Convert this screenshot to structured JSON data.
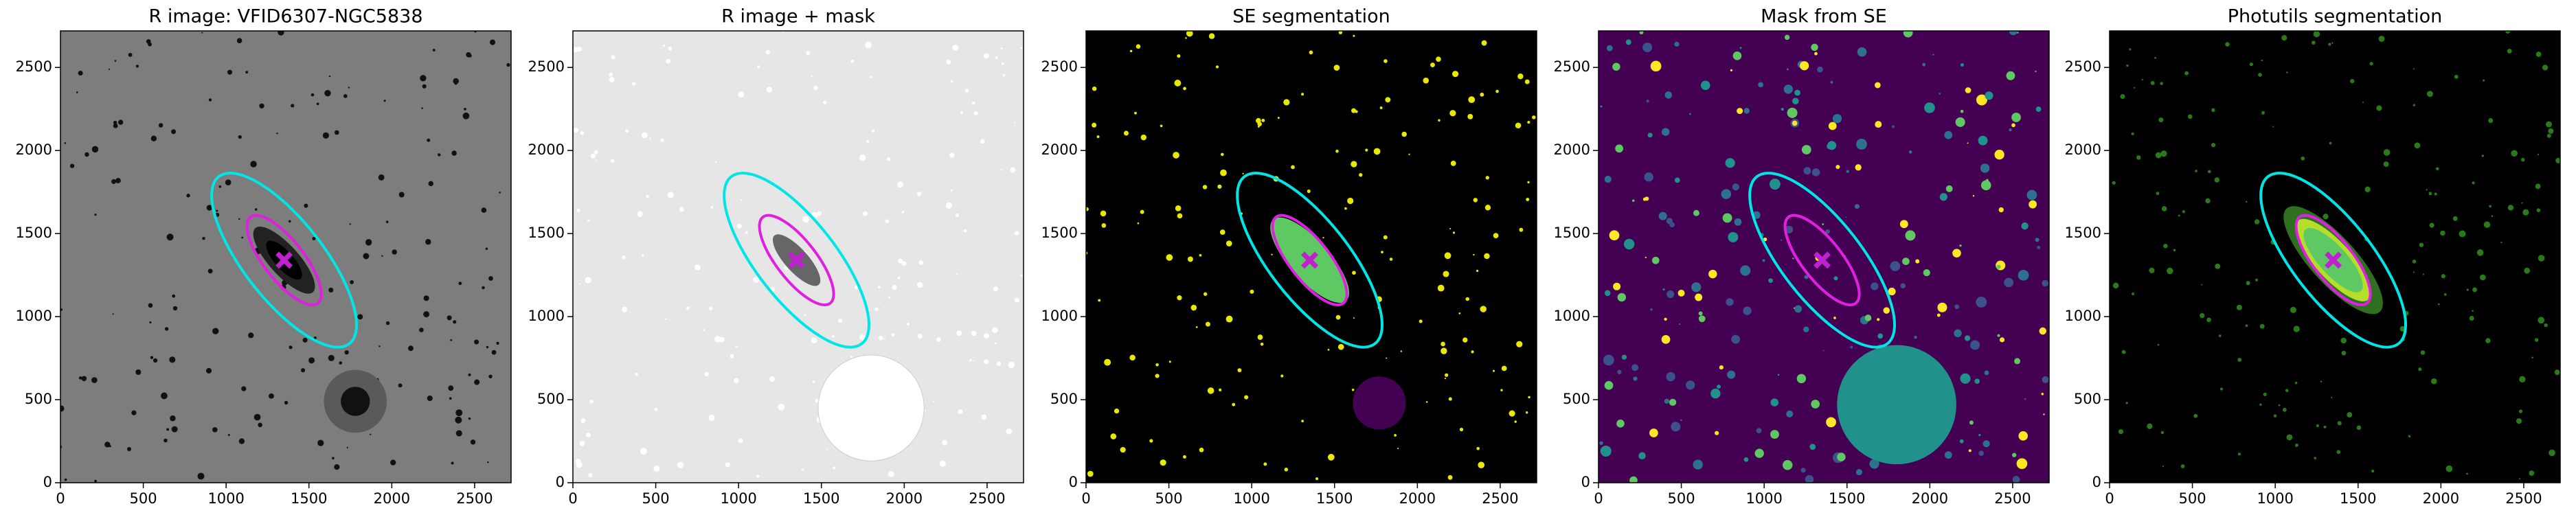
{
  "chart_data": [
    {
      "type": "image",
      "title": "R image: VFID6307-NGC5838",
      "xlim": [
        0,
        2720
      ],
      "ylim": [
        0,
        2720
      ],
      "xticks": [
        0,
        500,
        1000,
        1500,
        2000,
        2500
      ],
      "yticks": [
        0,
        500,
        1000,
        1500,
        2000,
        2500
      ]
    },
    {
      "type": "image",
      "title": "R image + mask",
      "xlim": [
        0,
        2720
      ],
      "ylim": [
        0,
        2720
      ],
      "xticks": [
        0,
        500,
        1000,
        1500,
        2000,
        2500
      ],
      "yticks": [
        0,
        500,
        1000,
        1500,
        2000,
        2500
      ]
    },
    {
      "type": "image",
      "title": "SE segmentation",
      "xlim": [
        0,
        2720
      ],
      "ylim": [
        0,
        2720
      ],
      "xticks": [
        0,
        500,
        1000,
        1500,
        2000,
        2500
      ],
      "yticks": [
        0,
        500,
        1000,
        1500,
        2000,
        2500
      ]
    },
    {
      "type": "image",
      "title": "Mask from SE",
      "xlim": [
        0,
        2720
      ],
      "ylim": [
        0,
        2720
      ],
      "xticks": [
        0,
        500,
        1000,
        1500,
        2000,
        2500
      ],
      "yticks": [
        0,
        500,
        1000,
        1500,
        2000,
        2500
      ]
    },
    {
      "type": "image",
      "title": "Photutils segmentation",
      "xlim": [
        0,
        2720
      ],
      "ylim": [
        0,
        2720
      ],
      "xticks": [
        0,
        500,
        1000,
        1500,
        2000,
        2500
      ],
      "yticks": [
        0,
        500,
        1000,
        1500,
        2000,
        2500
      ]
    }
  ]
}
